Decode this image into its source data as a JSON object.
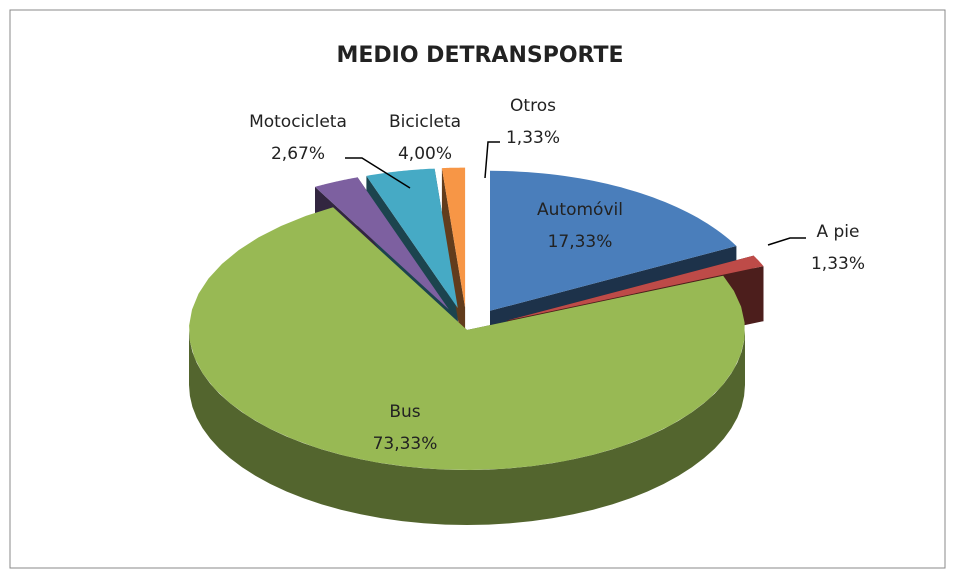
{
  "chart_data": {
    "type": "pie3d",
    "title": "MEDIO DETRANSPORTE",
    "categories": [
      "Automóvil",
      "A pie",
      "Bus",
      "Motocicleta",
      "Bicicleta",
      "Otros"
    ],
    "values": [
      17.33,
      1.33,
      73.33,
      2.67,
      4.0,
      1.33
    ],
    "value_labels": [
      "17,33%",
      "1,33%",
      "73,33%",
      "2,67%",
      "4,00%",
      "1,33%"
    ],
    "colors": [
      "#4a7ebb",
      "#be4b48",
      "#98b954",
      "#7d60a0",
      "#46aac5",
      "#f79646"
    ]
  }
}
